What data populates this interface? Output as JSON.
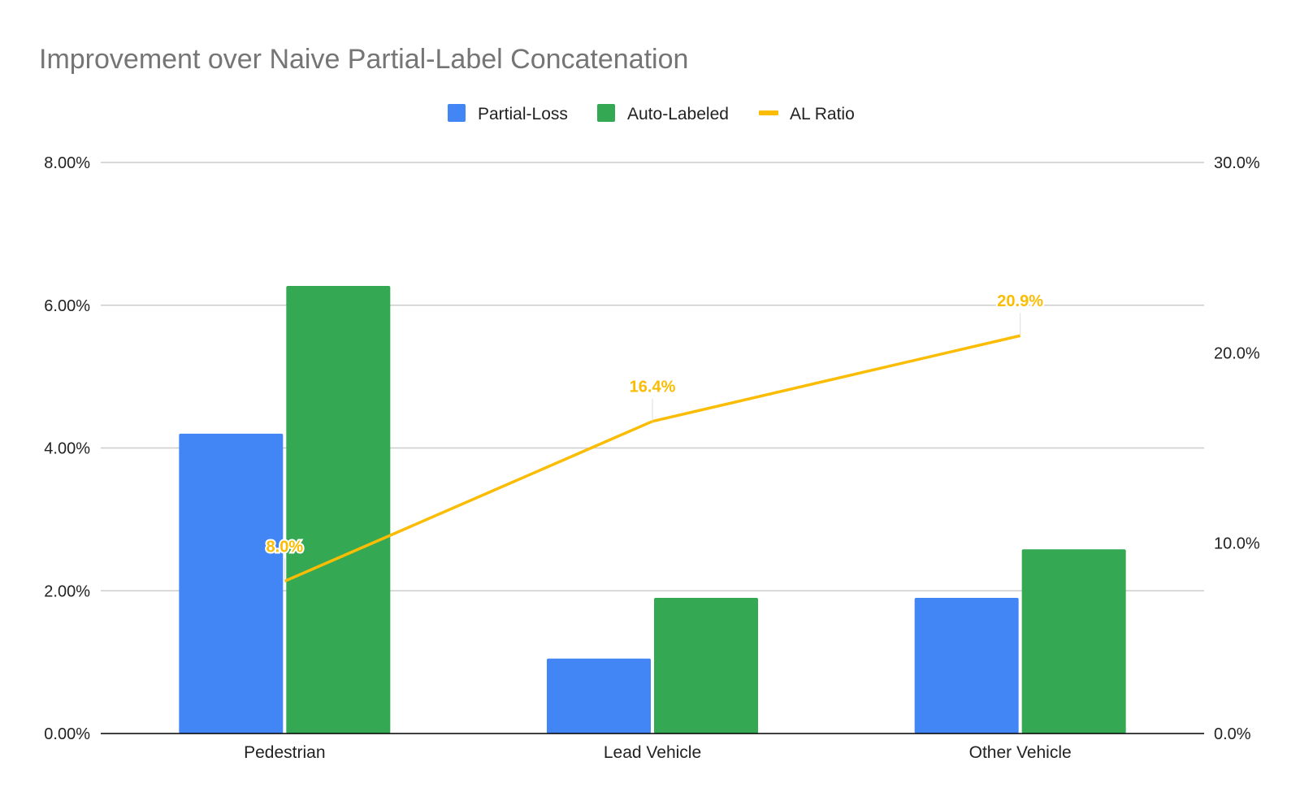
{
  "colors": {
    "partial_loss": "#4285F4",
    "auto_labeled": "#34A853",
    "al_ratio": "#FBBC04",
    "title": "#757575",
    "grid": "#cccccc",
    "axis": "#000000",
    "text": "#222222"
  },
  "chart_data": {
    "type": "bar",
    "title": "Improvement over Naive Partial-Label Concatenation",
    "categories": [
      "Pedestrian",
      "Lead Vehicle",
      "Other Vehicle"
    ],
    "series": [
      {
        "name": "Partial-Loss",
        "type": "bar",
        "axis": "left",
        "values": [
          4.2,
          1.05,
          1.9
        ]
      },
      {
        "name": "Auto-Labeled",
        "type": "bar",
        "axis": "left",
        "values": [
          6.27,
          1.9,
          2.58
        ]
      },
      {
        "name": "AL Ratio",
        "type": "line",
        "axis": "right",
        "values": [
          8.0,
          16.4,
          20.9
        ],
        "data_labels": [
          "8.0%",
          "16.4%",
          "20.9%"
        ]
      }
    ],
    "y_left": {
      "ylim": [
        0,
        8
      ],
      "ticks": [
        "0.00%",
        "2.00%",
        "4.00%",
        "6.00%",
        "8.00%"
      ]
    },
    "y_right": {
      "ylim": [
        0,
        30
      ],
      "ticks": [
        "0.0%",
        "10.0%",
        "20.0%",
        "30.0%"
      ]
    },
    "legend": "top-center",
    "grid": true
  }
}
